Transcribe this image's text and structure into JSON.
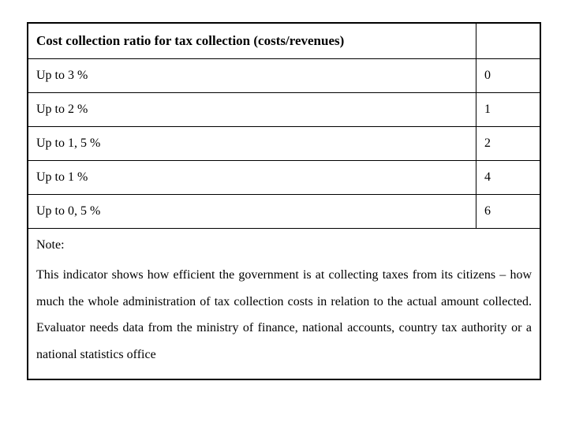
{
  "table": {
    "type": "table",
    "header": "Cost collection ratio for tax collection (costs/revenues)",
    "rows": [
      {
        "label": "Up to 3 %",
        "value": "0"
      },
      {
        "label": "Up to 2 %",
        "value": "1"
      },
      {
        "label": "Up to 1, 5 %",
        "value": "2"
      },
      {
        "label": "Up to 1 %",
        "value": "4"
      },
      {
        "label": "Up to 0, 5 %",
        "value": "6"
      }
    ],
    "note_label": "Note:",
    "note_text": "This indicator shows how efficient the government is at collecting taxes from its citizens – how much the whole administration of tax collection costs in relation to the actual amount collected. Evaluator needs data from the ministry of finance, national accounts, country tax authority or a national statistics office",
    "border_color": "#000000",
    "background_color": "#ffffff",
    "font_family": "Georgia, serif",
    "header_fontsize": 17,
    "body_fontsize": 16,
    "value_column_width": 80
  }
}
